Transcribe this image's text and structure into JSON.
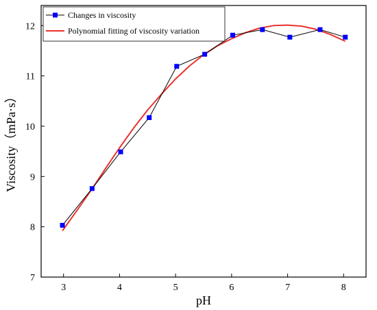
{
  "chart_data": {
    "type": "line",
    "xlabel": "pH",
    "ylabel": "Viscosity（mPa·s）",
    "xlim": [
      2.6,
      8.4
    ],
    "ylim": [
      7,
      12.4
    ],
    "xticks": [
      "3",
      "4",
      "5",
      "6",
      "7",
      "8"
    ],
    "yticks": [
      "7",
      "8",
      "9",
      "10",
      "11",
      "12"
    ],
    "legend_position": "top-left",
    "series": [
      {
        "name": "Changes in viscosity",
        "style": "line-with-square-markers",
        "line_color": "#000000",
        "marker_color": "#0000ff",
        "x": [
          2.98,
          3.51,
          4.02,
          4.53,
          5.02,
          5.52,
          6.02,
          6.55,
          7.04,
          7.58,
          8.03
        ],
        "y": [
          8.03,
          8.76,
          9.49,
          10.17,
          11.19,
          11.43,
          11.81,
          11.92,
          11.77,
          11.92,
          11.77
        ]
      },
      {
        "name": "Polynomial fitting of viscosity variation",
        "style": "smooth-line",
        "line_color": "#e8322c",
        "x": [
          2.98,
          3.25,
          3.5,
          3.75,
          4.0,
          4.25,
          4.5,
          4.75,
          5.0,
          5.25,
          5.5,
          5.75,
          6.0,
          6.25,
          6.5,
          6.75,
          7.0,
          7.25,
          7.5,
          7.75,
          8.03
        ],
        "y": [
          7.92,
          8.34,
          8.74,
          9.16,
          9.57,
          9.96,
          10.32,
          10.64,
          10.94,
          11.2,
          11.42,
          11.6,
          11.74,
          11.86,
          11.95,
          12.0,
          12.01,
          11.99,
          11.93,
          11.83,
          11.69
        ]
      }
    ]
  }
}
